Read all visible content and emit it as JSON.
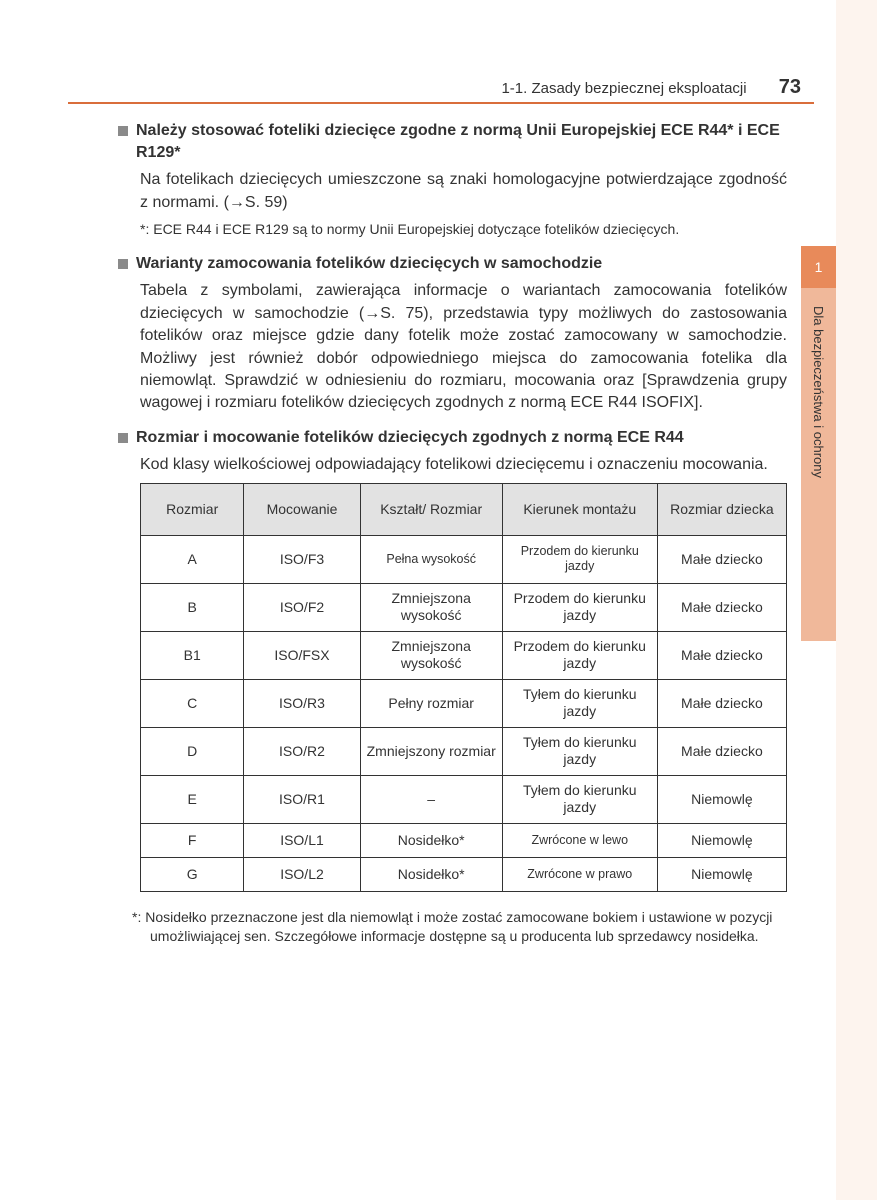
{
  "header": {
    "section_label": "1-1. Zasady bezpiecznej eksploatacji",
    "page_number": "73"
  },
  "sidetab": {
    "chapter_number": "1",
    "chapter_title": "Dla bezpieczeństwa i ochrony"
  },
  "sections": [
    {
      "title": "Należy stosować foteliki dziecięce zgodne z normą Unii Europejskiej ECE R44* i ECE R129*",
      "body": "Na fotelikach dziecięcych umieszczone są znaki homologacyjne potwierdzające zgodność z normami. (→S. 59)",
      "note": "*: ECE R44 i ECE R129 są to normy Unii Europejskiej dotyczące fotelików dziecięcych."
    },
    {
      "title": "Warianty zamocowania fotelików dziecięcych w samochodzie",
      "body": "Tabela z symbolami, zawierająca informacje o wariantach zamocowania fotelików dziecięcych w samochodzie (→S. 75), przedstawia typy możliwych do zastosowania fotelików oraz miejsce gdzie dany fotelik może zostać zamocowany w samochodzie. Możliwy jest również dobór odpowiedniego miejsca do zamocowania fotelika dla niemowląt. Sprawdzić w odniesieniu do rozmiaru, mocowania oraz [Sprawdzenia grupy wagowej i rozmiaru fotelików dziecięcych zgodnych z normą ECE R44 ISOFIX]."
    },
    {
      "title": "Rozmiar i mocowanie fotelików dziecięcych zgodnych z normą ECE R44",
      "body": "Kod klasy wielkościowej odpowiadający fotelikowi dziecięcemu i oznaczeniu mocowania."
    }
  ],
  "table": {
    "columns": [
      "Rozmiar",
      "Mocowanie",
      "Kształt/\nRozmiar",
      "Kierunek montażu",
      "Rozmiar dziecka"
    ],
    "col_widths": [
      "16%",
      "18%",
      "22%",
      "24%",
      "20%"
    ],
    "rows": [
      {
        "cells": [
          "A",
          "ISO/F3",
          "Pełna wysokość",
          "Przodem do kierunku jazdy",
          "Małe dziecko"
        ],
        "short": false,
        "small_idx": [
          2,
          3
        ]
      },
      {
        "cells": [
          "B",
          "ISO/F2",
          "Zmniejszona wysokość",
          "Przodem do kierunku jazdy",
          "Małe dziecko"
        ],
        "short": false,
        "small_idx": []
      },
      {
        "cells": [
          "B1",
          "ISO/FSX",
          "Zmniejszona wysokość",
          "Przodem do kierunku jazdy",
          "Małe dziecko"
        ],
        "short": false,
        "small_idx": []
      },
      {
        "cells": [
          "C",
          "ISO/R3",
          "Pełny rozmiar",
          "Tyłem do kierunku jazdy",
          "Małe dziecko"
        ],
        "short": false,
        "small_idx": []
      },
      {
        "cells": [
          "D",
          "ISO/R2",
          "Zmniejszony rozmiar",
          "Tyłem do kierunku jazdy",
          "Małe dziecko"
        ],
        "short": false,
        "small_idx": []
      },
      {
        "cells": [
          "E",
          "ISO/R1",
          "–",
          "Tyłem do kierunku jazdy",
          "Niemowlę"
        ],
        "short": false,
        "small_idx": []
      },
      {
        "cells": [
          "F",
          "ISO/L1",
          "Nosidełko*",
          "Zwrócone w lewo",
          "Niemowlę"
        ],
        "short": true,
        "small_idx": [
          3
        ]
      },
      {
        "cells": [
          "G",
          "ISO/L2",
          "Nosidełko*",
          "Zwrócone w prawo",
          "Niemowlę"
        ],
        "short": true,
        "small_idx": [
          3
        ]
      }
    ]
  },
  "bottom_note": "*: Nosidełko przeznaczone jest dla niemowląt i może zostać zamocowane bokiem i ustawione w pozycji umożliwiającej sen. Szczegółowe informacje dostępne są u producenta lub sprzedawcy nosidełka.",
  "colors": {
    "accent_line": "#d96d3b",
    "tab_bg": "#f0b89a",
    "tab_top": "#e88a5a",
    "table_header_bg": "#e2e2e2",
    "border": "#333333"
  }
}
